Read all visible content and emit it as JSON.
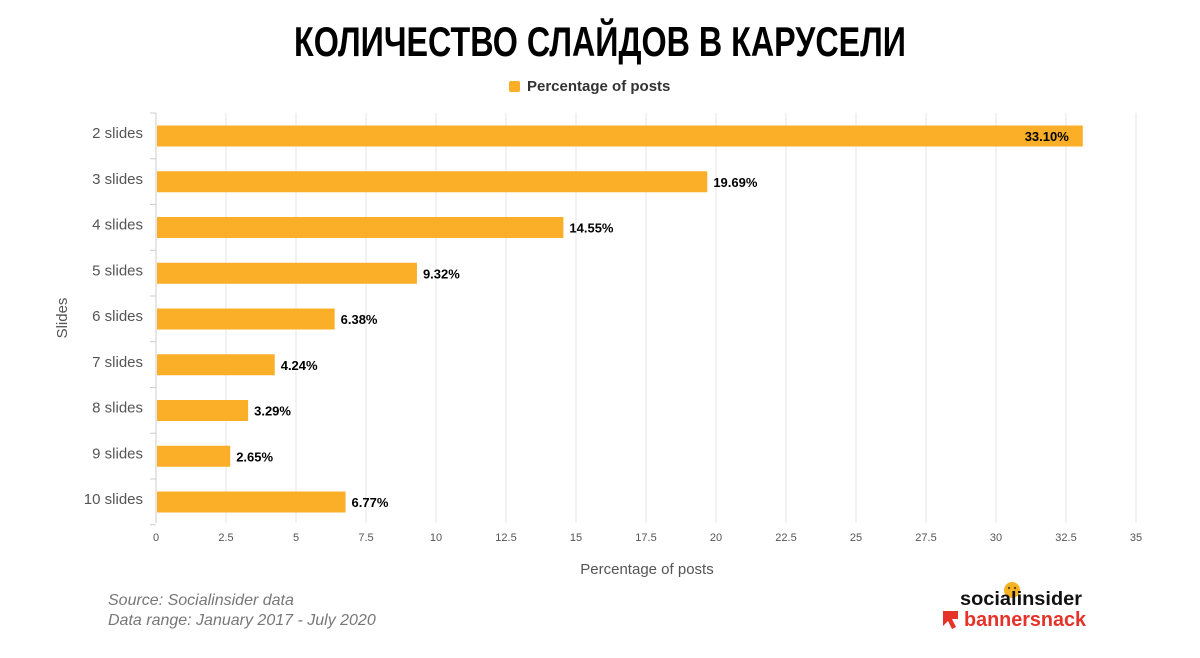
{
  "title": "КОЛИЧЕСТВО СЛАЙДОВ В КАРУСЕЛИ",
  "legend": {
    "label": "Percentage of posts"
  },
  "colors": {
    "bar": "#FBAE27",
    "grid": "#E6E6E6",
    "brand_red": "#E5332A",
    "logo_dot": "#F5B324"
  },
  "chart_data": {
    "type": "bar",
    "orientation": "horizontal",
    "title": "КОЛИЧЕСТВО СЛАЙДОВ В КАРУСЕЛИ",
    "xlabel": "Percentage of posts",
    "ylabel": "Slides",
    "xlim": [
      0,
      35
    ],
    "xticks": [
      0,
      2.5,
      5,
      7.5,
      10,
      12.5,
      15,
      17.5,
      20,
      22.5,
      25,
      27.5,
      30,
      32.5,
      35
    ],
    "xtick_labels": [
      "0",
      "2.5",
      "5",
      "7.5",
      "10",
      "12.5",
      "15",
      "17.5",
      "20",
      "22.5",
      "25",
      "27.5",
      "30",
      "32.5",
      "35"
    ],
    "grid": true,
    "legend_position": "top-center",
    "categories": [
      "2 slides",
      "3 slides",
      "4 slides",
      "5 slides",
      "6 slides",
      "7 slides",
      "8 slides",
      "9 slides",
      "10 slides"
    ],
    "series": [
      {
        "name": "Percentage of posts",
        "values": [
          33.1,
          19.69,
          14.55,
          9.32,
          6.38,
          4.24,
          3.29,
          2.65,
          6.77
        ],
        "labels": [
          "33.10%",
          "19.69%",
          "14.55%",
          "9.32%",
          "6.38%",
          "4.24%",
          "3.29%",
          "2.65%",
          "6.77%"
        ]
      }
    ]
  },
  "source": {
    "line1": "Source: Socialinsider data",
    "line2": "Data range: January 2017 - July 2020"
  },
  "logos": {
    "socialinsider": "socialinsider",
    "bannersnack": "bannersnack"
  }
}
